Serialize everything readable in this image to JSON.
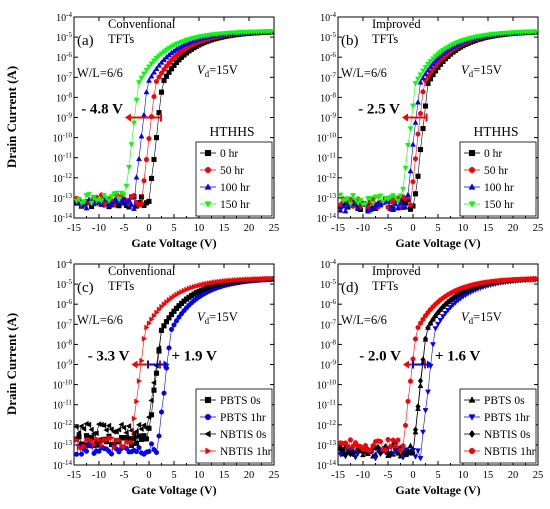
{
  "figure": {
    "ylabel": "Drain Current (A)",
    "xlabel": "Gate Voltage (V)",
    "xticks": [
      "-15",
      "-10",
      "-5",
      "0",
      "5",
      "10",
      "15",
      "20",
      "25"
    ],
    "yticks": [
      {
        "b": "10",
        "e": "-4"
      },
      {
        "b": "10",
        "e": "-5"
      },
      {
        "b": "10",
        "e": "-6"
      },
      {
        "b": "10",
        "e": "-7"
      },
      {
        "b": "10",
        "e": "-8"
      },
      {
        "b": "10",
        "e": "-9"
      },
      {
        "b": "10",
        "e": "-10"
      },
      {
        "b": "10",
        "e": "-11"
      },
      {
        "b": "10",
        "e": "-12"
      },
      {
        "b": "10",
        "e": "-13"
      },
      {
        "b": "10",
        "e": "-14"
      }
    ]
  },
  "chart_data": [
    {
      "panel": "(a)",
      "type": "scatter",
      "title": [
        "Conventional",
        "TFTs"
      ],
      "wl_label": "W/L=6/6",
      "vd_label": {
        "sym": "V",
        "sub": "d",
        "rest": "=15V"
      },
      "xlim": [
        -15,
        25
      ],
      "ylim_log10": [
        -14,
        -4
      ],
      "y_scale": "log",
      "shift": {
        "text": "- 4.8 V",
        "color": "#ff0000",
        "from": 1.2,
        "to": -3.6,
        "y_log10": -9
      },
      "legend_title": "HTHHS",
      "legend_position": "bottom-right",
      "series": [
        {
          "name": "0 hr",
          "marker": "square",
          "color": "#000000",
          "vth": 1.2,
          "floor": -13.2
        },
        {
          "name": "50 hr",
          "marker": "circle",
          "color": "#ff0000",
          "vth": -0.2,
          "floor": -13.1
        },
        {
          "name": "100 hr",
          "marker": "triangle-up",
          "color": "#0000ff",
          "vth": -1.8,
          "floor": -13.3
        },
        {
          "name": "150 hr",
          "marker": "triangle-down",
          "color": "#00ff00",
          "vth": -3.6,
          "floor": -13.0
        }
      ]
    },
    {
      "panel": "(b)",
      "type": "scatter",
      "title": [
        "Improved",
        "TFTs"
      ],
      "wl_label": "W/L=6/6",
      "vd_label": {
        "sym": "V",
        "sub": "d",
        "rest": "=15V"
      },
      "xlim": [
        -15,
        25
      ],
      "ylim_log10": [
        -14,
        -4
      ],
      "y_scale": "log",
      "shift": {
        "text": "- 2.5 V",
        "color": "#ff0000",
        "from": 1.5,
        "to": -1.0,
        "y_log10": -9
      },
      "legend_title": "HTHHS",
      "legend_position": "bottom-right",
      "series": [
        {
          "name": "0 hr",
          "marker": "square",
          "color": "#000000",
          "vth": 1.5,
          "floor": -13.3
        },
        {
          "name": "50 hr",
          "marker": "circle",
          "color": "#ff0000",
          "vth": 0.7,
          "floor": -13.2
        },
        {
          "name": "100 hr",
          "marker": "triangle-up",
          "color": "#0000ff",
          "vth": -0.1,
          "floor": -13.4
        },
        {
          "name": "150 hr",
          "marker": "triangle-down",
          "color": "#00ff00",
          "vth": -1.0,
          "floor": -13.1
        }
      ]
    },
    {
      "panel": "(c)",
      "type": "scatter",
      "title": [
        "Conventional",
        "TFTs"
      ],
      "wl_label": "W/L=6/6",
      "vd_label": {
        "sym": "V",
        "sub": "d",
        "rest": "=15V"
      },
      "xlim": [
        -15,
        25
      ],
      "ylim_log10": [
        -14,
        -4
      ],
      "y_scale": "log",
      "shift": {
        "text": "- 3.3 V",
        "color": "#ff0000",
        "from": 1.0,
        "to": -2.3,
        "y_log10": -9
      },
      "shift2": {
        "text": "+ 1.9 V",
        "color": "#0000ff",
        "from": 1.0,
        "to": 2.9,
        "y_log10": -9
      },
      "legend_position": "bottom-right",
      "series": [
        {
          "name": "PBTS 0s",
          "marker": "square",
          "color": "#000000",
          "vth": 1.0,
          "floor": -12.8
        },
        {
          "name": "PBTS 1hr",
          "marker": "circle",
          "color": "#0000ff",
          "vth": 2.9,
          "floor": -13.2
        },
        {
          "name": "NBTIS 0s",
          "marker": "triangle-left",
          "color": "#000000",
          "vth": 1.0,
          "floor": -12.2
        },
        {
          "name": "NBTIS 1hr",
          "marker": "triangle-right",
          "color": "#ff0000",
          "vth": -2.3,
          "floor": -12.9
        }
      ]
    },
    {
      "panel": "(d)",
      "type": "scatter",
      "title": [
        "Improved",
        "TFTs"
      ],
      "wl_label": "W/L=6/6",
      "vd_label": {
        "sym": "V",
        "sub": "d",
        "rest": "=15V"
      },
      "xlim": [
        -15,
        25
      ],
      "ylim_log10": [
        -14,
        -4
      ],
      "y_scale": "log",
      "shift": {
        "text": "- 2.0 V",
        "color": "#ff0000",
        "from": 1.2,
        "to": -0.8,
        "y_log10": -9
      },
      "shift2": {
        "text": "+ 1.6 V",
        "color": "#0000ff",
        "from": 1.2,
        "to": 2.8,
        "y_log10": -9
      },
      "legend_position": "bottom-right",
      "series": [
        {
          "name": "PBTS 0s",
          "marker": "triangle-up",
          "color": "#000000",
          "vth": 1.2,
          "floor": -13.3
        },
        {
          "name": "PBTS 1hr",
          "marker": "triangle-down",
          "color": "#0000ff",
          "vth": 2.8,
          "floor": -13.4
        },
        {
          "name": "NBTIS 0s",
          "marker": "diamond",
          "color": "#000000",
          "vth": 1.2,
          "floor": -13.2
        },
        {
          "name": "NBTIS 1hr",
          "marker": "circle",
          "color": "#ff0000",
          "vth": -0.8,
          "floor": -13.0
        }
      ]
    }
  ]
}
